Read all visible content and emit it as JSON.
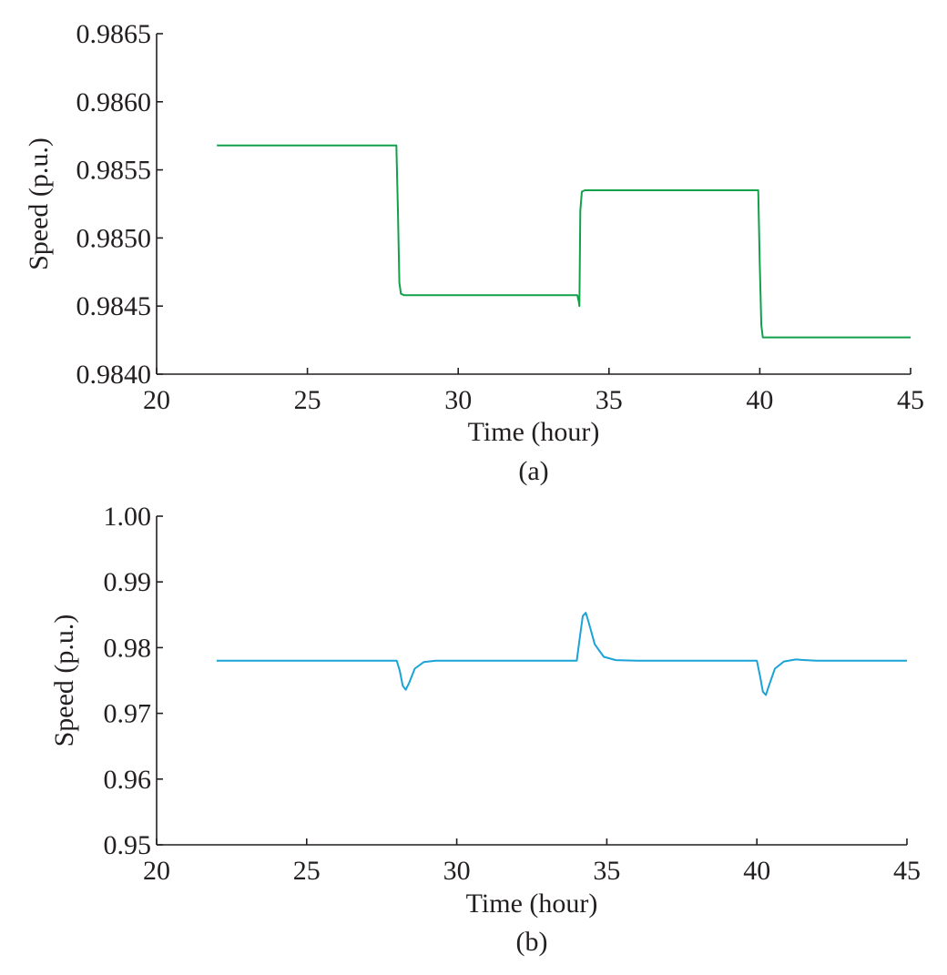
{
  "chart_data": [
    {
      "type": "line",
      "caption": "(a)",
      "xlabel": "Time (hour)",
      "ylabel": "Speed (p.u.)",
      "xlim": [
        20,
        45
      ],
      "ylim": [
        0.984,
        0.9865
      ],
      "xticks": [
        "20",
        "25",
        "30",
        "35",
        "40",
        "45"
      ],
      "yticks": [
        "0.9840",
        "0.9845",
        "0.9850",
        "0.9855",
        "0.9860",
        "0.9865"
      ],
      "grid": false,
      "series": [
        {
          "color": "#12a14b",
          "x": [
            22,
            27.95,
            28.0,
            28.05,
            28.1,
            28.2,
            33.95,
            34.0,
            34.02,
            34.05,
            34.1,
            34.2,
            39.95,
            40.0,
            40.05,
            40.1,
            45
          ],
          "y": [
            0.98568,
            0.98568,
            0.9852,
            0.98467,
            0.98459,
            0.98458,
            0.98458,
            0.98453,
            0.9845,
            0.9852,
            0.98534,
            0.98535,
            0.98535,
            0.9848,
            0.98436,
            0.98427,
            0.98427
          ]
        }
      ]
    },
    {
      "type": "line",
      "caption": "(b)",
      "xlabel": "Time (hour)",
      "ylabel": "Speed (p.u.)",
      "xlim": [
        20,
        45
      ],
      "ylim": [
        0.95,
        1.0
      ],
      "xticks": [
        "20",
        "25",
        "30",
        "35",
        "40",
        "45"
      ],
      "yticks": [
        "0.95",
        "0.96",
        "0.97",
        "0.98",
        "0.99",
        "1.00"
      ],
      "grid": false,
      "series": [
        {
          "color": "#1aa3d6",
          "x": [
            22,
            28.0,
            28.1,
            28.2,
            28.3,
            28.4,
            28.6,
            28.9,
            29.3,
            30,
            34.0,
            34.1,
            34.2,
            34.3,
            34.4,
            34.6,
            34.9,
            35.3,
            36,
            40.0,
            40.1,
            40.2,
            40.3,
            40.4,
            40.6,
            40.9,
            41.3,
            41.6,
            42,
            45
          ],
          "y": [
            0.978,
            0.978,
            0.9765,
            0.9742,
            0.9736,
            0.9745,
            0.9768,
            0.9778,
            0.978,
            0.978,
            0.978,
            0.9815,
            0.9848,
            0.9853,
            0.9838,
            0.9805,
            0.9786,
            0.9781,
            0.978,
            0.978,
            0.9758,
            0.9733,
            0.9728,
            0.9742,
            0.9768,
            0.9779,
            0.9782,
            0.9781,
            0.978,
            0.978
          ]
        }
      ]
    }
  ]
}
